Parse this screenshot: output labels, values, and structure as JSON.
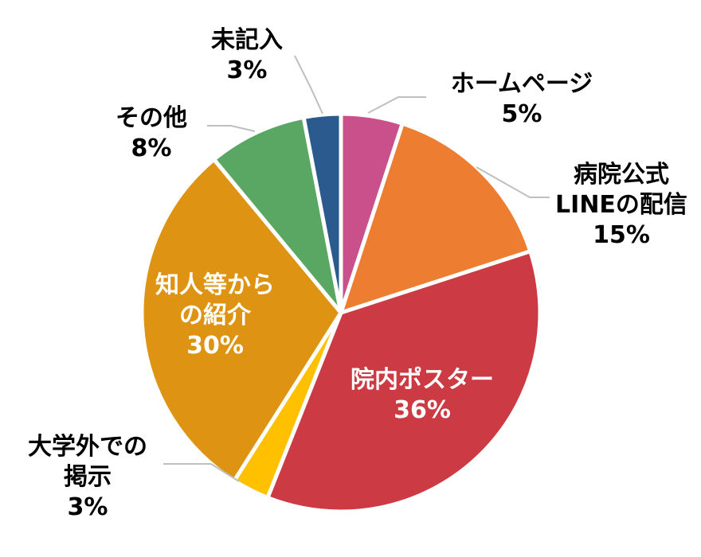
{
  "chart_data": {
    "type": "pie",
    "title": "",
    "start_angle_deg": 0,
    "direction": "clockwise",
    "slices": [
      {
        "label": "ホームページ",
        "lines": [
          "ホームページ",
          "5%"
        ],
        "value": 5,
        "percent_label": "5%",
        "color": "#c9508b",
        "label_position": "outside"
      },
      {
        "label": "病院公式LINEの配信",
        "lines": [
          "病院公式",
          "LINEの配信",
          "15%"
        ],
        "value": 15,
        "percent_label": "15%",
        "color": "#ed7d31",
        "label_position": "outside"
      },
      {
        "label": "院内ポスター",
        "lines": [
          "院内ポスター",
          "36%"
        ],
        "value": 36,
        "percent_label": "36%",
        "color": "#cc3b43",
        "label_position": "inside"
      },
      {
        "label": "大学外での掲示",
        "lines": [
          "大学外での",
          "掲示",
          "3%"
        ],
        "value": 3,
        "percent_label": "3%",
        "color": "#ffc000",
        "label_position": "outside"
      },
      {
        "label": "知人等からの紹介",
        "lines": [
          "知人等から",
          "の紹介",
          "30%"
        ],
        "value": 30,
        "percent_label": "30%",
        "color": "#de9412",
        "label_position": "inside"
      },
      {
        "label": "その他",
        "lines": [
          "その他",
          "8%"
        ],
        "value": 8,
        "percent_label": "8%",
        "color": "#5aa764",
        "label_position": "outside"
      },
      {
        "label": "未記入",
        "lines": [
          "未記入",
          "3%"
        ],
        "value": 3,
        "percent_label": "3%",
        "color": "#2a5a8e",
        "label_position": "outside"
      }
    ]
  }
}
